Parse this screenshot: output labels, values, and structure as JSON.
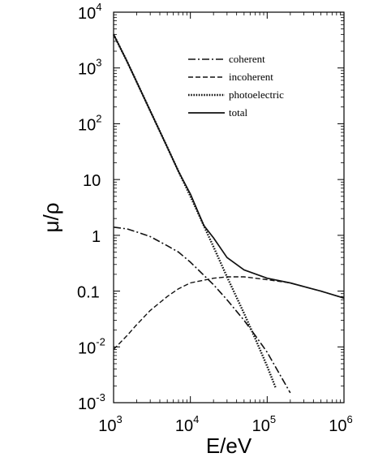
{
  "chart_data": {
    "type": "line",
    "title": "",
    "xlabel": "E/eV",
    "ylabel": "μ/ρ",
    "x_scale": "log",
    "y_scale": "log",
    "xlim": [
      1000,
      1000000
    ],
    "ylim": [
      0.001,
      10000
    ],
    "grid": false,
    "legend_position": "top-right",
    "x_ticks": [
      {
        "value": 1000,
        "base": "10",
        "exp": "3"
      },
      {
        "value": 10000,
        "base": "10",
        "exp": "4"
      },
      {
        "value": 100000,
        "base": "10",
        "exp": "5"
      },
      {
        "value": 1000000,
        "base": "10",
        "exp": "6"
      }
    ],
    "y_ticks": [
      {
        "value": 10000,
        "base": "10",
        "exp": "4"
      },
      {
        "value": 1000,
        "base": "10",
        "exp": "3"
      },
      {
        "value": 100,
        "base": "10",
        "exp": "2"
      },
      {
        "value": 10,
        "base": "10",
        "exp": ""
      },
      {
        "value": 1,
        "base": "1",
        "exp": ""
      },
      {
        "value": 0.1,
        "base": "0.1",
        "exp": ""
      },
      {
        "value": 0.01,
        "base": "10",
        "exp": "-2"
      },
      {
        "value": 0.001,
        "base": "10",
        "exp": "-3"
      }
    ],
    "series": [
      {
        "name": "coherent",
        "dash": "dashdot",
        "x": [
          1000,
          1500,
          2000,
          3000,
          5000,
          7000,
          10000,
          20000,
          30000,
          50000,
          70000,
          100000,
          150000,
          200000
        ],
        "y": [
          1.4,
          1.3,
          1.15,
          0.95,
          0.65,
          0.5,
          0.33,
          0.13,
          0.07,
          0.03,
          0.016,
          0.008,
          0.003,
          0.0015
        ]
      },
      {
        "name": "incoherent",
        "dash": "dashed",
        "x": [
          1000,
          1500,
          2000,
          3000,
          5000,
          7000,
          10000,
          20000,
          30000,
          50000,
          100000,
          200000,
          500000,
          1000000
        ],
        "y": [
          0.009,
          0.016,
          0.025,
          0.045,
          0.08,
          0.11,
          0.14,
          0.17,
          0.18,
          0.18,
          0.16,
          0.14,
          0.1,
          0.075
        ]
      },
      {
        "name": "photoelectric",
        "dash": "dotted",
        "x": [
          1000,
          1500,
          2000,
          3000,
          5000,
          7000,
          10000,
          20000,
          30000,
          50000,
          70000,
          100000,
          130000
        ],
        "y": [
          4000,
          1300,
          560,
          170,
          38,
          14,
          5,
          0.62,
          0.18,
          0.04,
          0.014,
          0.0045,
          0.0018
        ]
      },
      {
        "name": "total",
        "dash": "solid",
        "x": [
          1000,
          1500,
          2000,
          3000,
          5000,
          7000,
          10000,
          15000,
          20000,
          30000,
          50000,
          100000,
          200000,
          500000,
          1000000
        ],
        "y": [
          4000,
          1300,
          560,
          170,
          38,
          14,
          5.5,
          1.5,
          0.9,
          0.4,
          0.24,
          0.17,
          0.14,
          0.1,
          0.075
        ]
      }
    ]
  }
}
